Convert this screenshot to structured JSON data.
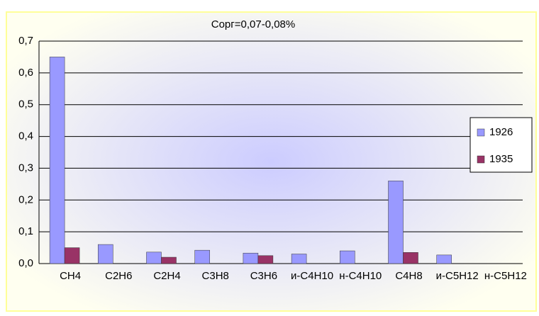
{
  "chart_data": {
    "type": "bar",
    "title": "Сорг=0,07-0,08%",
    "categories": [
      "CH4",
      "C2H6",
      "C2H4",
      "C3H8",
      "C3H6",
      "и-C4H10",
      "н-C4H10",
      "C4H8",
      "и-C5H12",
      "н-C5H12"
    ],
    "series": [
      {
        "name": "1926",
        "color": "#9999ff",
        "values": [
          0.65,
          0.06,
          0.036,
          0.042,
          0.033,
          0.03,
          0.04,
          0.26,
          0.027,
          null
        ]
      },
      {
        "name": "1935",
        "color": "#993366",
        "values": [
          0.05,
          null,
          0.02,
          null,
          0.025,
          null,
          null,
          0.035,
          null,
          null
        ]
      }
    ],
    "ylim": [
      0,
      0.7
    ],
    "yticks": [
      {
        "value": 0,
        "label": "0,0"
      },
      {
        "value": 0.1,
        "label": "0,1"
      },
      {
        "value": 0.2,
        "label": "0,2"
      },
      {
        "value": 0.3,
        "label": "0,3"
      },
      {
        "value": 0.4,
        "label": "0,4"
      },
      {
        "value": 0.5,
        "label": "0,5"
      },
      {
        "value": 0.6,
        "label": "0,6"
      },
      {
        "value": 0.7,
        "label": "0,7"
      }
    ],
    "grid": true,
    "legend": "right"
  }
}
